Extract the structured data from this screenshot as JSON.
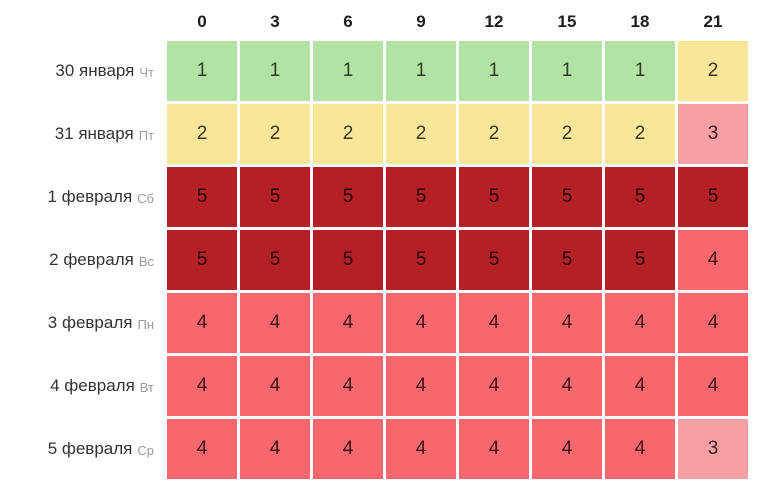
{
  "chart_data": {
    "type": "heatmap",
    "columns": [
      "0",
      "3",
      "6",
      "9",
      "12",
      "15",
      "18",
      "21"
    ],
    "rows": [
      {
        "date": "30 января",
        "weekday": "Чт",
        "values": [
          1,
          1,
          1,
          1,
          1,
          1,
          1,
          2
        ]
      },
      {
        "date": "31 января",
        "weekday": "Пт",
        "values": [
          2,
          2,
          2,
          2,
          2,
          2,
          2,
          3
        ]
      },
      {
        "date": "1 февраля",
        "weekday": "Сб",
        "values": [
          5,
          5,
          5,
          5,
          5,
          5,
          5,
          5
        ]
      },
      {
        "date": "2 февраля",
        "weekday": "Вс",
        "values": [
          5,
          5,
          5,
          5,
          5,
          5,
          5,
          4
        ]
      },
      {
        "date": "3 февраля",
        "weekday": "Пн",
        "values": [
          4,
          4,
          4,
          4,
          4,
          4,
          4,
          4
        ]
      },
      {
        "date": "4 февраля",
        "weekday": "Вт",
        "values": [
          4,
          4,
          4,
          4,
          4,
          4,
          4,
          4
        ]
      },
      {
        "date": "5 февраля",
        "weekday": "Ср",
        "values": [
          4,
          4,
          4,
          4,
          4,
          4,
          4,
          3
        ]
      }
    ],
    "value_colors": {
      "1": {
        "bg": "#b2e2a4",
        "fg": "#2e3d28"
      },
      "2": {
        "bg": "#fae698",
        "fg": "#3c3824"
      },
      "3": {
        "bg": "#f9a0a5",
        "fg": "#3a1d1f"
      },
      "4": {
        "bg": "#f7686e",
        "fg": "#421114"
      },
      "5": {
        "bg": "#b42025",
        "fg": "#240607"
      }
    },
    "grid_gap_color": "#ffffff",
    "legend_position": "none",
    "grid": true
  }
}
